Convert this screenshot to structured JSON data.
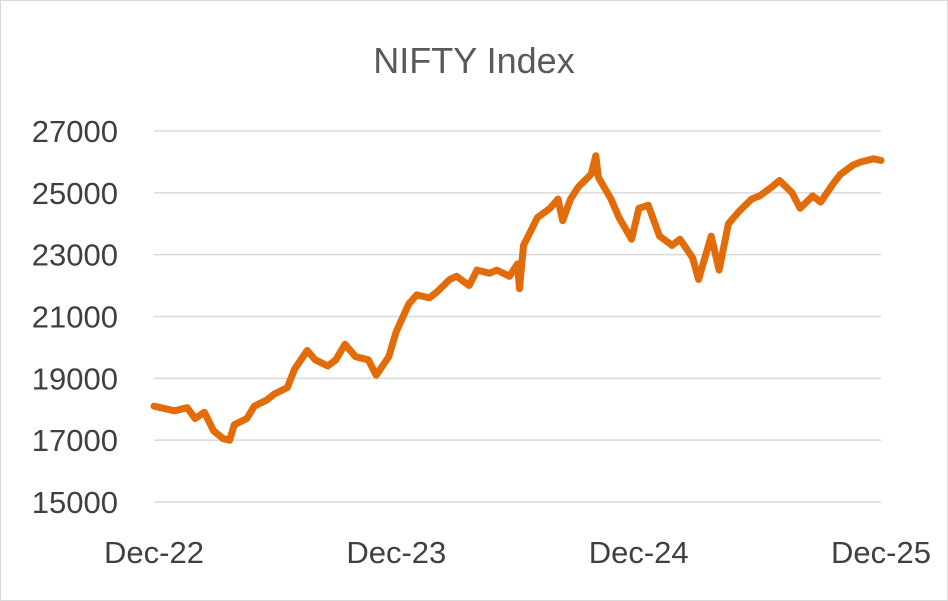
{
  "chart_data": {
    "type": "line",
    "title": "NIFTY Index",
    "xlabel": "",
    "ylabel": "",
    "ylim": [
      15000,
      27000
    ],
    "y_ticks": [
      27000,
      25000,
      23000,
      21000,
      19000,
      17000,
      15000
    ],
    "x_ticks": [
      "Dec-22",
      "Dec-23",
      "Dec-24",
      "Dec-25"
    ],
    "xlim": [
      "2022-12",
      "2025-12"
    ],
    "grid": true,
    "legend": "none",
    "line_color": "#e26b0a",
    "grid_color": "#d9d9d9",
    "series": [
      {
        "values": [
          [
            "2022-12",
            18100
          ],
          [
            "2023-01",
            17950
          ],
          [
            "2023-01-20",
            18050
          ],
          [
            "2023-02",
            17700
          ],
          [
            "2023-02-15",
            17900
          ],
          [
            "2023-03",
            17300
          ],
          [
            "2023-03-15",
            17050
          ],
          [
            "2023-03-25",
            17000
          ],
          [
            "2023-04",
            17500
          ],
          [
            "2023-04-20",
            17700
          ],
          [
            "2023-05",
            18100
          ],
          [
            "2023-05-20",
            18300
          ],
          [
            "2023-06",
            18500
          ],
          [
            "2023-06-20",
            18700
          ],
          [
            "2023-07",
            19300
          ],
          [
            "2023-07-20",
            19900
          ],
          [
            "2023-08",
            19600
          ],
          [
            "2023-08-20",
            19400
          ],
          [
            "2023-09",
            19600
          ],
          [
            "2023-09-15",
            20100
          ],
          [
            "2023-10",
            19700
          ],
          [
            "2023-10-20",
            19600
          ],
          [
            "2023-11",
            19100
          ],
          [
            "2023-11-20",
            19700
          ],
          [
            "2023-12",
            20500
          ],
          [
            "2023-12-20",
            21400
          ],
          [
            "2024-01",
            21700
          ],
          [
            "2024-01-20",
            21600
          ],
          [
            "2024-02",
            21800
          ],
          [
            "2024-02-20",
            22200
          ],
          [
            "2024-03",
            22300
          ],
          [
            "2024-03-20",
            22000
          ],
          [
            "2024-04",
            22500
          ],
          [
            "2024-04-20",
            22400
          ],
          [
            "2024-05",
            22500
          ],
          [
            "2024-05-20",
            22300
          ],
          [
            "2024-06",
            22700
          ],
          [
            "2024-06-04",
            21900
          ],
          [
            "2024-06-10",
            23300
          ],
          [
            "2024-07",
            24200
          ],
          [
            "2024-07-20",
            24500
          ],
          [
            "2024-08",
            24800
          ],
          [
            "2024-08-08",
            24100
          ],
          [
            "2024-08-20",
            24800
          ],
          [
            "2024-09",
            25200
          ],
          [
            "2024-09-20",
            25600
          ],
          [
            "2024-09-27",
            26200
          ],
          [
            "2024-10",
            25500
          ],
          [
            "2024-10-20",
            24800
          ],
          [
            "2024-11",
            24200
          ],
          [
            "2024-11-20",
            23500
          ],
          [
            "2024-12",
            24500
          ],
          [
            "2024-12-15",
            24600
          ],
          [
            "2025-01",
            23600
          ],
          [
            "2025-01-20",
            23300
          ],
          [
            "2025-02",
            23500
          ],
          [
            "2025-02-20",
            22900
          ],
          [
            "2025-03",
            22200
          ],
          [
            "2025-03-20",
            23600
          ],
          [
            "2025-04",
            22500
          ],
          [
            "2025-04-15",
            24000
          ],
          [
            "2025-05",
            24400
          ],
          [
            "2025-05-20",
            24800
          ],
          [
            "2025-06",
            24900
          ],
          [
            "2025-06-20",
            25200
          ],
          [
            "2025-07",
            25400
          ],
          [
            "2025-07-20",
            25000
          ],
          [
            "2025-08",
            24500
          ],
          [
            "2025-08-20",
            24900
          ],
          [
            "2025-09",
            24700
          ],
          [
            "2025-09-20",
            25300
          ],
          [
            "2025-10",
            25600
          ],
          [
            "2025-10-20",
            25900
          ],
          [
            "2025-11",
            26000
          ],
          [
            "2025-11-20",
            26100
          ],
          [
            "2025-12",
            26050
          ]
        ]
      }
    ]
  }
}
